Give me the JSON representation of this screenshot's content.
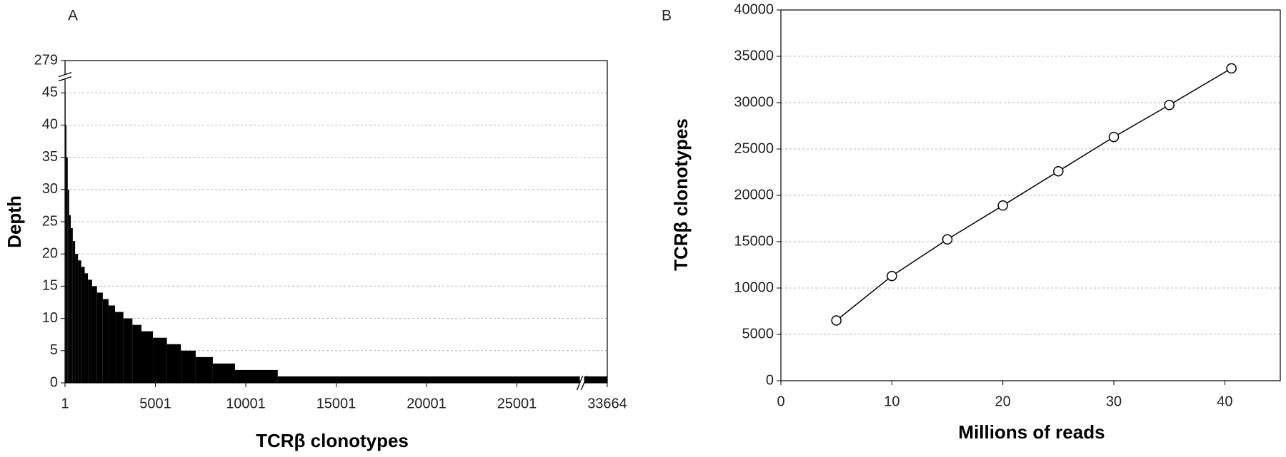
{
  "chart_data": [
    {
      "type": "step",
      "panel_label": "A",
      "x_label": "TCRβ clonotypes",
      "y_label": "Depth",
      "x": [
        1,
        2,
        30,
        80,
        150,
        230,
        320,
        430,
        560,
        720,
        900,
        1090,
        1270,
        1500,
        1770,
        2090,
        2410,
        2770,
        3230,
        3730,
        4230,
        4865,
        5640,
        6410,
        7230,
        8180,
        9410,
        11772
      ],
      "values": [
        279,
        45,
        40,
        35,
        30,
        26,
        24,
        22,
        20,
        19,
        18,
        17,
        16,
        15,
        14,
        13,
        12,
        11,
        10,
        9,
        8,
        7,
        6,
        5,
        4,
        3,
        2,
        1
      ],
      "color": "#000000",
      "xlim": [
        1,
        33664
      ],
      "xticks": [
        1,
        5001,
        10001,
        15001,
        20001,
        25001,
        33664
      ],
      "x_axis_break": true,
      "ylim": [
        0,
        279
      ],
      "yticks": [
        0,
        5,
        10,
        15,
        20,
        25,
        30,
        35,
        40,
        45,
        279
      ],
      "y_axis_break": true,
      "grid": true
    },
    {
      "type": "line",
      "panel_label": "B",
      "x_label": "Millions of reads",
      "y_label": "TCRβ clonotypes",
      "x": [
        5,
        10,
        15,
        20,
        25,
        30,
        35,
        40.6
      ],
      "values": [
        6500,
        11300,
        15250,
        18900,
        22600,
        26300,
        29750,
        33700
      ],
      "color": "#000000",
      "xlim": [
        0,
        45
      ],
      "xticks": [
        0,
        10,
        20,
        30,
        40
      ],
      "ylim": [
        0,
        40000
      ],
      "yticks": [
        0,
        5000,
        10000,
        15000,
        20000,
        25000,
        30000,
        35000,
        40000
      ],
      "grid": true
    }
  ]
}
